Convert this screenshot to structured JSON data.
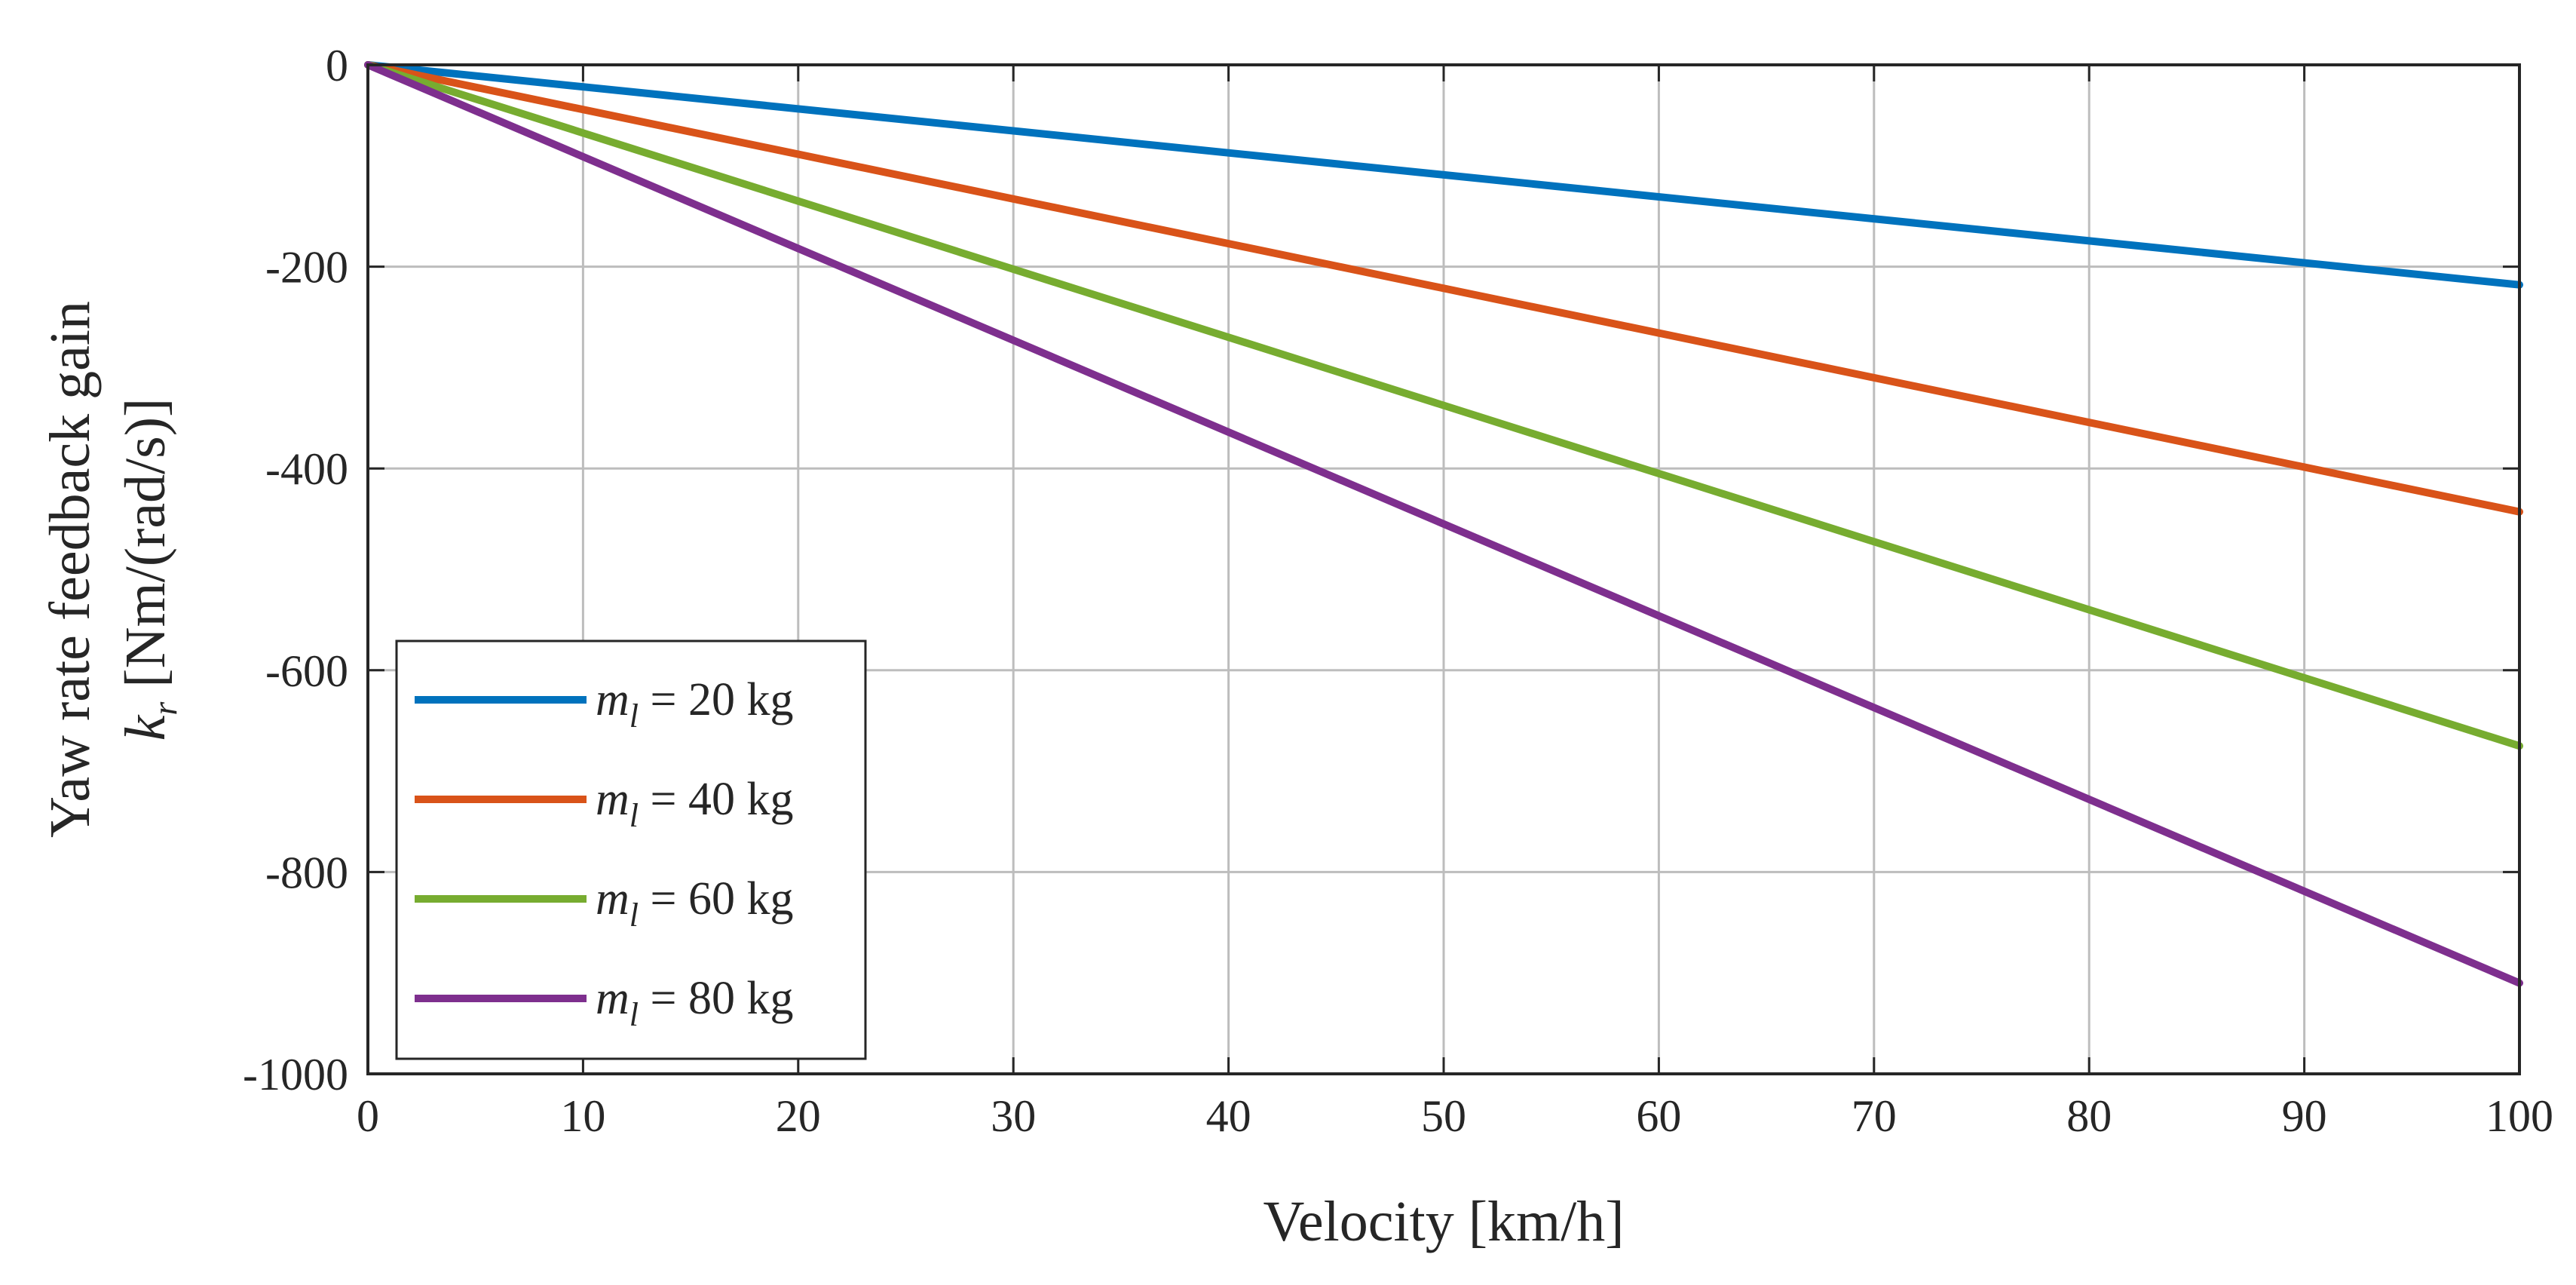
{
  "chart_data": {
    "type": "line",
    "title": "",
    "xlabel": "Velocity [km/h]",
    "ylabel": {
      "line1": "Yaw rate feedback gain",
      "symbol": "k",
      "subscript": "r",
      "unit": "[Nm/(rad/s)]"
    },
    "xlim": [
      0,
      100
    ],
    "ylim": [
      -1000,
      0
    ],
    "xticks": [
      0,
      10,
      20,
      30,
      40,
      50,
      60,
      70,
      80,
      90,
      100
    ],
    "yticks": [
      0,
      -200,
      -400,
      -600,
      -800,
      -1000
    ],
    "grid": true,
    "legend_position": "bottom-left",
    "x": [
      0,
      100
    ],
    "series": [
      {
        "name": "m_l = 20 kg",
        "legend": {
          "symbol": "m",
          "subscript": "l",
          "text": " = 20 kg"
        },
        "color": "#0072BD",
        "values": [
          0,
          -218
        ]
      },
      {
        "name": "m_l = 40 kg",
        "legend": {
          "symbol": "m",
          "subscript": "l",
          "text": " = 40 kg"
        },
        "color": "#D95319",
        "values": [
          0,
          -443
        ]
      },
      {
        "name": "m_l = 60 kg",
        "legend": {
          "symbol": "m",
          "subscript": "l",
          "text": " = 60 kg"
        },
        "color": "#77AC30",
        "values": [
          0,
          -675
        ]
      },
      {
        "name": "m_l = 80 kg",
        "legend": {
          "symbol": "m",
          "subscript": "l",
          "text": " = 80 kg"
        },
        "color": "#7E2F8E",
        "values": [
          0,
          -910
        ]
      }
    ]
  }
}
